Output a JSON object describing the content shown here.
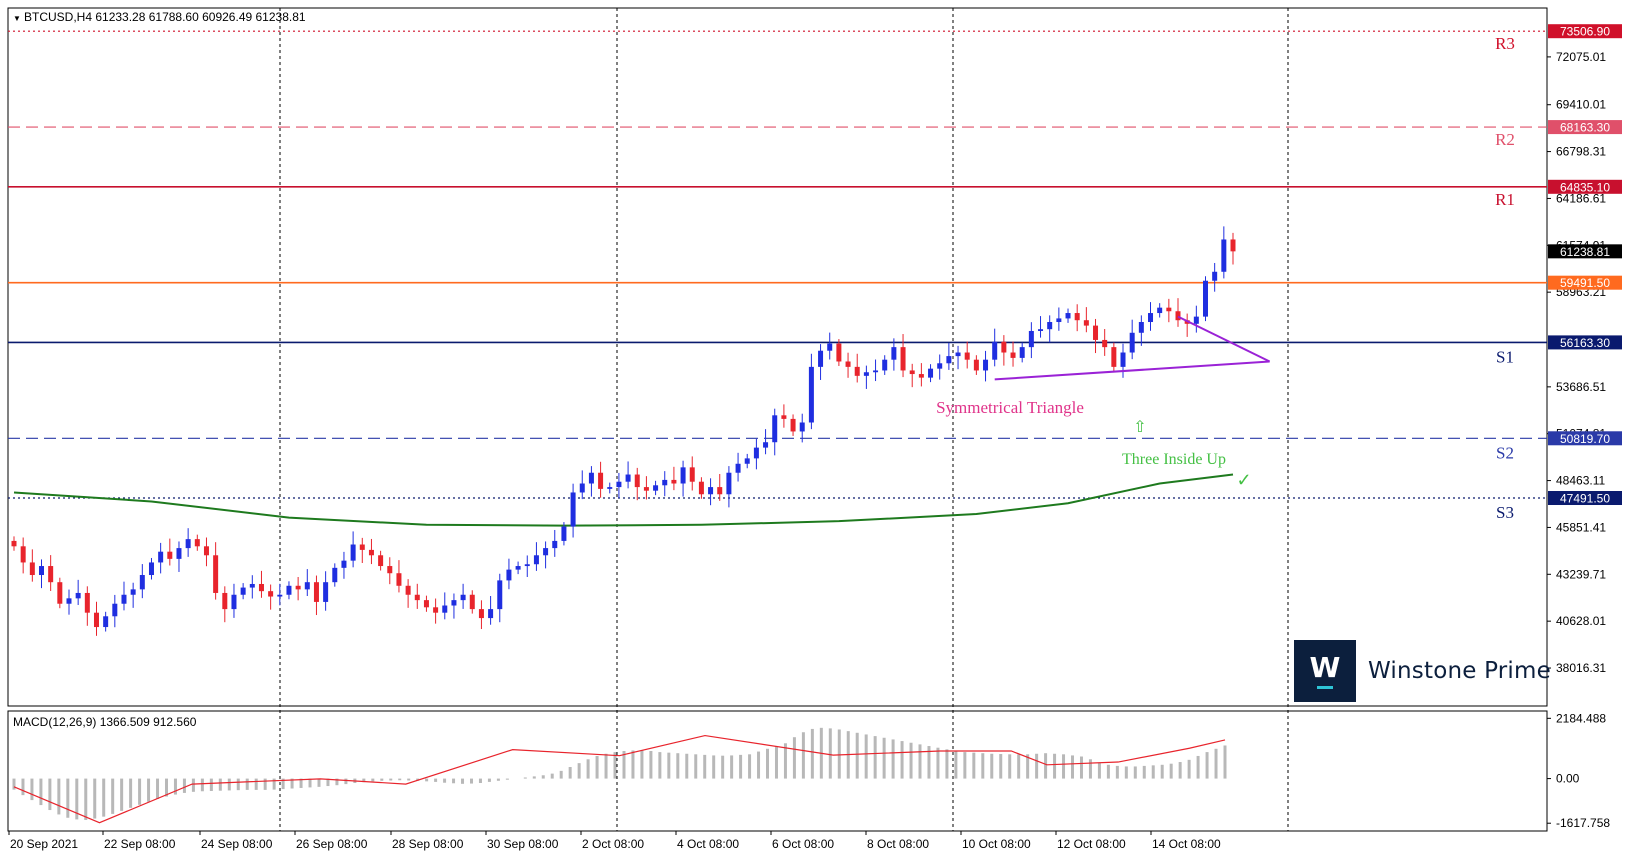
{
  "chart_data": {
    "type": "candlestick",
    "symbol_header": "BTCUSD,H4  61233.28 61788.60 60926.49 61238.81",
    "price_scale": {
      "min": 35900,
      "max": 74800
    },
    "price_ticks": [
      "72075.01",
      "69410.01",
      "66798.31",
      "64186.61",
      "61574.91",
      "58963.21",
      "53686.51",
      "51074.81",
      "48463.11",
      "45851.41",
      "43239.71",
      "40628.01",
      "38016.31"
    ],
    "x_labels": [
      "20 Sep 2021",
      "22 Sep 08:00",
      "24 Sep 08:00",
      "26 Sep 08:00",
      "28 Sep 08:00",
      "30 Sep 08:00",
      "2 Oct 08:00",
      "4 Oct 08:00",
      "6 Oct 08:00",
      "8 Oct 08:00",
      "10 Oct 08:00",
      "12 Oct 08:00",
      "14 Oct 08:00"
    ],
    "last_price": "61238.81",
    "levels": [
      {
        "name": "R3",
        "price": 73506.9,
        "label": "73506.90",
        "color": "#d0102a",
        "style": "dotted"
      },
      {
        "name": "R2",
        "price": 68163.3,
        "label": "68163.30",
        "color": "#e0506a",
        "style": "dashed"
      },
      {
        "name": "R1",
        "price": 64835.1,
        "label": "64835.10",
        "color": "#c8102e",
        "style": "solid"
      },
      {
        "name": "",
        "price": 59491.5,
        "label": "59491.50",
        "color": "#ff6a1f",
        "style": "solid"
      },
      {
        "name": "S1",
        "price": 56163.3,
        "label": "56163.30",
        "color": "#0a1a6e",
        "style": "solid"
      },
      {
        "name": "S2",
        "price": 50819.7,
        "label": "50819.70",
        "color": "#2a3aa8",
        "style": "dashed"
      },
      {
        "name": "S3",
        "price": 47491.5,
        "label": "47491.50",
        "color": "#0a1a6e",
        "style": "dotted"
      }
    ],
    "candle_closes": [
      44800,
      43900,
      43200,
      43700,
      42800,
      41600,
      41900,
      42200,
      41100,
      40300,
      40900,
      41600,
      42100,
      42400,
      43200,
      43900,
      44500,
      44100,
      44700,
      45200,
      44800,
      44300,
      42200,
      41300,
      42100,
      42500,
      42700,
      42300,
      42000,
      42100,
      42600,
      42400,
      42800,
      41700,
      42800,
      43600,
      44000,
      44900,
      44600,
      44300,
      43700,
      43300,
      42600,
      42100,
      41800,
      41400,
      41100,
      41500,
      41800,
      42100,
      41300,
      40800,
      41300,
      42900,
      43500,
      43700,
      43800,
      44300,
      44700,
      45100,
      45900,
      47800,
      48300,
      48900,
      48000,
      48100,
      48400,
      48800,
      48100,
      47900,
      48200,
      48500,
      48300,
      49200,
      48400,
      47700,
      48100,
      47700,
      48900,
      49400,
      49700,
      50300,
      50600,
      52100,
      51900,
      51200,
      51700,
      54800,
      55700,
      56100,
      55100,
      54800,
      54300,
      54500,
      54600,
      55200,
      55900,
      54600,
      54400,
      54200,
      54700,
      55000,
      55400,
      55600,
      55200,
      54600,
      55200,
      56200,
      55600,
      55300,
      55900,
      56800,
      56900,
      57300,
      57500,
      57800,
      57400,
      57100,
      56300,
      55900,
      54800,
      55600,
      56700,
      57300,
      57800,
      58100,
      57900,
      57400,
      57200,
      57600,
      59600,
      60100,
      61900,
      61238
    ],
    "ma_points": [
      [
        0,
        47800
      ],
      [
        15,
        47300
      ],
      [
        30,
        46400
      ],
      [
        45,
        46000
      ],
      [
        60,
        45950
      ],
      [
        75,
        46000
      ],
      [
        90,
        46200
      ],
      [
        105,
        46600
      ],
      [
        115,
        47200
      ],
      [
        125,
        48300
      ],
      [
        133,
        48800
      ]
    ],
    "macd": {
      "label": "MACD(12,26,9) 1366.509 912.560",
      "ticks": [
        "2184.488",
        "0.00",
        "-1617.758"
      ],
      "range": [
        -1900,
        2450
      ],
      "histogram": [
        -400,
        -600,
        -780,
        -960,
        -1140,
        -1300,
        -1420,
        -1480,
        -1500,
        -1450,
        -1380,
        -1280,
        -1170,
        -1060,
        -950,
        -840,
        -740,
        -650,
        -580,
        -520,
        -480,
        -460,
        -450,
        -440,
        -430,
        -420,
        -410,
        -410,
        -410,
        -400,
        -380,
        -360,
        -340,
        -320,
        -300,
        -270,
        -240,
        -200,
        -160,
        -130,
        -100,
        -80,
        -70,
        -60,
        -70,
        -80,
        -100,
        -120,
        -150,
        -170,
        -190,
        -180,
        -160,
        -120,
        -80,
        -40,
        0,
        40,
        80,
        120,
        180,
        280,
        420,
        560,
        700,
        820,
        900,
        960,
        1000,
        1020,
        1020,
        1000,
        960,
        940,
        920,
        900,
        880,
        860,
        840,
        830,
        840,
        860,
        880,
        980,
        1080,
        1180,
        1280,
        1500,
        1680,
        1800,
        1840,
        1820,
        1780,
        1720,
        1660,
        1600,
        1540,
        1480,
        1420,
        1360,
        1300,
        1240,
        1180,
        1120,
        1060,
        1000,
        960,
        940,
        920,
        900,
        890,
        880,
        880,
        880,
        900,
        920,
        900,
        880,
        840,
        800,
        700,
        580,
        500,
        460,
        440,
        440,
        460,
        480,
        500,
        540,
        600,
        680,
        820,
        960,
        1080,
        1200
      ],
      "signal": [
        [
          0,
          -300
        ],
        [
          12,
          -1600
        ],
        [
          25,
          -200
        ],
        [
          43,
          -10
        ],
        [
          55,
          -200
        ],
        [
          70,
          1050
        ],
        [
          85,
          830
        ],
        [
          97,
          1560
        ],
        [
          115,
          850
        ],
        [
          130,
          1000
        ],
        [
          140,
          1000
        ],
        [
          145,
          500
        ],
        [
          155,
          600
        ],
        [
          165,
          1100
        ],
        [
          170,
          1400
        ]
      ]
    },
    "annotations": {
      "triangle_label": "Symmetrical Triangle",
      "pattern_label": "Three Inside Up",
      "arrow_icon": "⇧",
      "check_icon": "✓"
    }
  },
  "brand": {
    "mark": "W",
    "name": "Winstone Prime"
  }
}
